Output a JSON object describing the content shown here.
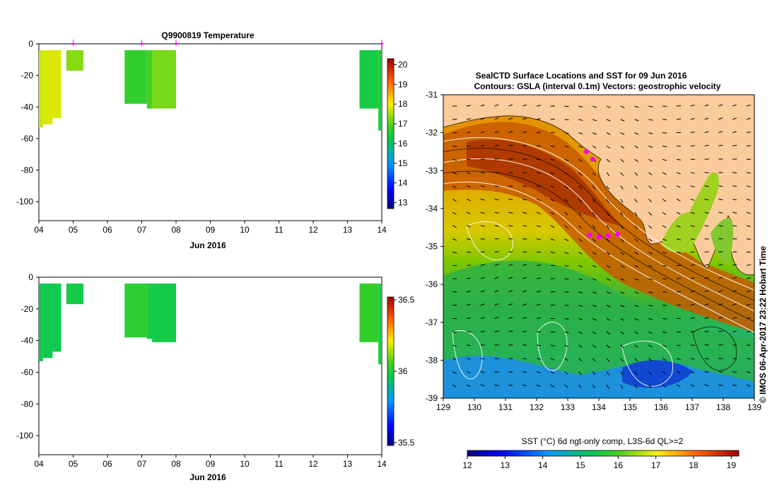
{
  "chart_data": [
    {
      "type": "heatmap",
      "panel": "temperature-profile",
      "title": "Q9900819  Temperature",
      "xlabel": "Jun 2016",
      "ylabel": "",
      "x_ticks": [
        "04",
        "05",
        "06",
        "07",
        "08",
        "09",
        "10",
        "11",
        "12",
        "13",
        "14"
      ],
      "y_ticks": [
        0,
        -20,
        -40,
        -60,
        -80,
        -100
      ],
      "xlim": [
        4.0,
        14.0
      ],
      "ylim": [
        -112,
        0
      ],
      "colorbar": {
        "ticks": [
          20,
          19,
          18,
          17,
          16,
          15,
          14,
          13
        ],
        "range": [
          12.7,
          20.3
        ]
      },
      "profile_markers": [
        5.0,
        7.0,
        8.0,
        14.0
      ],
      "profiles": [
        {
          "x0": 4.0,
          "x1": 4.12,
          "depth": -53,
          "value": 17.7
        },
        {
          "x0": 4.12,
          "x1": 4.4,
          "depth": -51,
          "value": 17.8
        },
        {
          "x0": 4.4,
          "x1": 4.65,
          "depth": -47,
          "value": 17.8
        },
        {
          "x0": 4.65,
          "x1": 4.8,
          "depth": -4,
          "value": 17.6
        },
        {
          "x0": 4.8,
          "x1": 5.3,
          "depth": -17,
          "value": 17.3
        },
        {
          "x0": 6.5,
          "x1": 7.15,
          "depth": -38,
          "value": 16.7
        },
        {
          "x0": 7.15,
          "x1": 7.3,
          "depth": -41,
          "value": 16.9
        },
        {
          "x0": 7.3,
          "x1": 8.0,
          "depth": -41,
          "value": 17.2
        },
        {
          "x0": 13.35,
          "x1": 13.9,
          "depth": -41,
          "value": 16.4
        },
        {
          "x0": 13.9,
          "x1": 14.0,
          "depth": -55,
          "value": 16.5
        }
      ]
    },
    {
      "type": "heatmap",
      "panel": "salinity-profile",
      "title": "",
      "xlabel": "Jun 2016",
      "ylabel": "",
      "x_ticks": [
        "04",
        "05",
        "06",
        "07",
        "08",
        "09",
        "10",
        "11",
        "12",
        "13",
        "14"
      ],
      "y_ticks": [
        0,
        -20,
        -40,
        -60,
        -80,
        -100
      ],
      "xlim": [
        4.0,
        14.0
      ],
      "ylim": [
        -112,
        0
      ],
      "colorbar": {
        "ticks": [
          36.5,
          36,
          35.5
        ],
        "range": [
          35.48,
          36.52
        ]
      },
      "profiles": [
        {
          "x0": 4.0,
          "x1": 4.12,
          "depth": -53,
          "value": 35.97
        },
        {
          "x0": 4.12,
          "x1": 4.4,
          "depth": -51,
          "value": 35.97
        },
        {
          "x0": 4.4,
          "x1": 4.65,
          "depth": -47,
          "value": 35.97
        },
        {
          "x0": 4.65,
          "x1": 4.8,
          "depth": -4,
          "value": 35.97
        },
        {
          "x0": 4.8,
          "x1": 5.3,
          "depth": -17,
          "value": 35.98
        },
        {
          "x0": 6.5,
          "x1": 7.15,
          "depth": -38,
          "value": 36.02
        },
        {
          "x0": 7.15,
          "x1": 7.3,
          "depth": -39,
          "value": 35.99
        },
        {
          "x0": 7.3,
          "x1": 8.0,
          "depth": -41,
          "value": 35.98
        },
        {
          "x0": 13.35,
          "x1": 13.9,
          "depth": -41,
          "value": 36.03
        },
        {
          "x0": 13.9,
          "x1": 14.0,
          "depth": -55,
          "value": 36.0
        }
      ]
    },
    {
      "type": "heatmap",
      "panel": "sst-map",
      "title": "SealCTD Surface Locations and SST for 09 Jun 2016",
      "subtitle": "Contours: GSLA (interval 0.1m) Vectors: geostrophic velocity",
      "xlabel": "",
      "ylabel": "",
      "x_ticks": [
        129,
        130,
        131,
        132,
        133,
        134,
        135,
        136,
        137,
        138,
        139
      ],
      "y_ticks": [
        -31,
        -32,
        -33,
        -34,
        -35,
        -36,
        -37,
        -38,
        -39
      ],
      "xlim": [
        129,
        139
      ],
      "ylim": [
        -39,
        -31
      ],
      "colorbar_label": "SST (°C) 6d ngt-only comp, L3S-6d QL>=2",
      "colorbar": {
        "ticks": [
          12,
          13,
          14,
          15,
          16,
          17,
          18,
          19
        ],
        "range": [
          12,
          19.2
        ]
      },
      "seal_locations": [
        {
          "lon": 133.6,
          "lat": -32.5
        },
        {
          "lon": 133.8,
          "lat": -32.7
        },
        {
          "lon": 133.7,
          "lat": -34.7
        },
        {
          "lon": 134.0,
          "lat": -34.75
        },
        {
          "lon": 134.3,
          "lat": -34.72
        },
        {
          "lon": 134.6,
          "lat": -34.68
        }
      ],
      "credit": "© IMOS 06-Apr-2017 23:22 Hobart Time"
    }
  ],
  "colors": {
    "land": "#fccb9c",
    "marker": "#ff00ff",
    "axis": "#000000"
  }
}
